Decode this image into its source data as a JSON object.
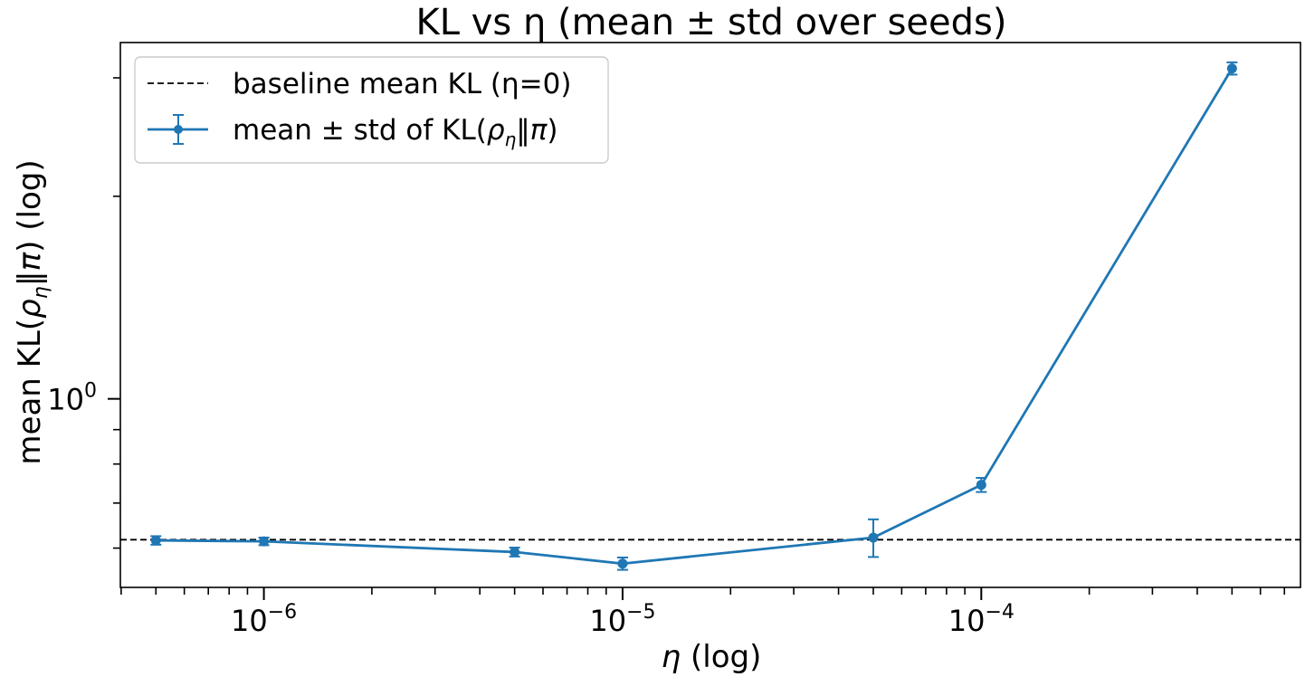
{
  "chart_data": {
    "type": "line",
    "title": "KL vs η (mean ± std over seeds)",
    "xlabel_symbol": "η",
    "xlabel_suffix": " (log)",
    "ylabel_prefix": "mean KL(",
    "ylabel_rho": "ρ",
    "ylabel_sub": "η",
    "ylabel_mid": "‖",
    "ylabel_pi": "π",
    "ylabel_suffix": ") (log)",
    "xscale": "log",
    "yscale": "log",
    "xlim": [
      3.98e-07,
      0.000776
    ],
    "ylim": [
      0.5245,
      3.385
    ],
    "x_ticks": [
      {
        "base": "10",
        "exp": "−6",
        "value": 1e-06
      },
      {
        "base": "10",
        "exp": "−5",
        "value": 1e-05
      },
      {
        "base": "10",
        "exp": "−4",
        "value": 0.0001
      }
    ],
    "y_ticks": [
      {
        "base": "10",
        "exp": "0",
        "value": 1.0
      }
    ],
    "baseline": {
      "label": "baseline mean KL (η=0)",
      "value": 0.6175,
      "color": "#000000"
    },
    "series": [
      {
        "name": "mean ± std of KL(ρη‖π)",
        "color": "#1f77b4",
        "x": [
          5e-07,
          1e-06,
          5e-06,
          1e-05,
          5e-05,
          0.0001,
          0.0005
        ],
        "y": [
          0.616,
          0.614,
          0.592,
          0.569,
          0.622,
          0.745,
          3.098
        ],
        "yerr": [
          0.009,
          0.008,
          0.009,
          0.012,
          0.04,
          0.018,
          0.065
        ]
      }
    ],
    "legend": {
      "location": "top-left",
      "baseline_label": "baseline mean KL (η=0)",
      "series_label_prefix": "mean ± std of KL(",
      "series_label_rho": "ρ",
      "series_label_sub": "η",
      "series_label_mid": "‖",
      "series_label_pi": "π",
      "series_label_suffix": ")"
    }
  }
}
